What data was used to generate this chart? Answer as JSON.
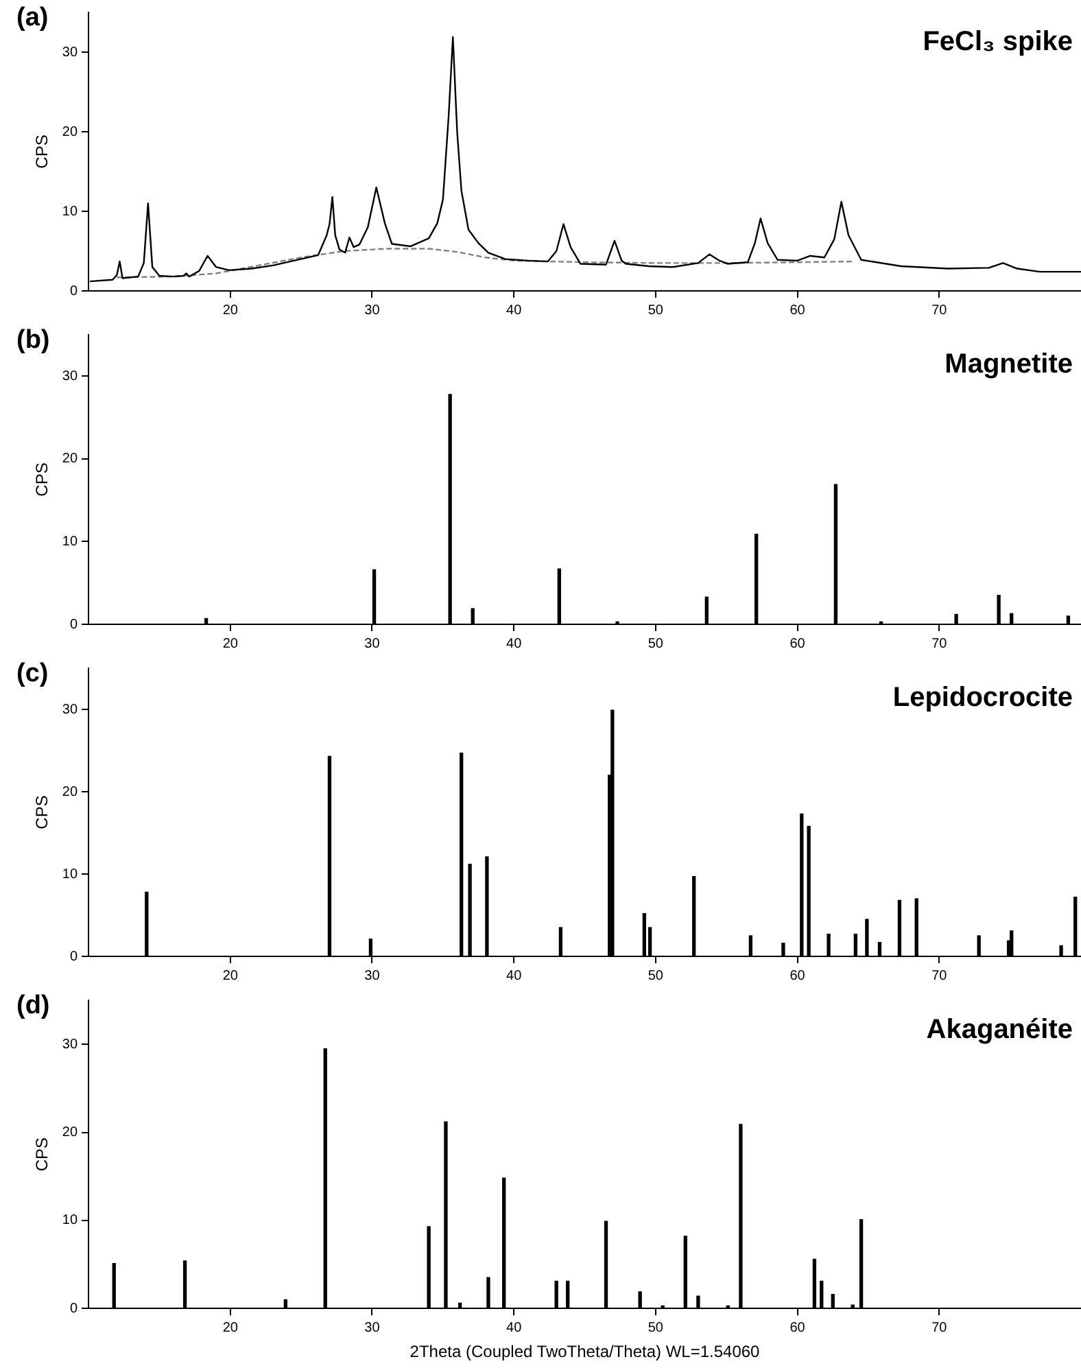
{
  "chart_data": [
    {
      "type": "line",
      "title": "FeCl₃ spike",
      "annotations": [
        "(a)"
      ],
      "ylabel": "CPS",
      "xlim": [
        10,
        80
      ],
      "ylim": [
        0,
        35
      ],
      "xticks": [
        20,
        30,
        40,
        50,
        60,
        70
      ],
      "yticks": [
        0,
        10,
        20,
        30
      ],
      "series": [
        {
          "color": "#000000",
          "x": [
            10.1,
            11.7,
            12.0,
            12.2,
            12.4,
            13.5,
            13.9,
            14.2,
            14.5,
            15.0,
            16.0,
            16.7,
            16.9,
            17.1,
            17.8,
            18.4,
            19.0,
            19.9,
            21.5,
            23.0,
            24.5,
            26.2,
            26.8,
            27.0,
            27.2,
            27.4,
            27.7,
            28.1,
            28.4,
            28.7,
            29.1,
            29.7,
            30.3,
            30.9,
            31.4,
            32.7,
            34.0,
            34.6,
            35.0,
            35.4,
            35.7,
            36.0,
            36.3,
            36.8,
            37.5,
            38.2,
            39.4,
            41.0,
            42.4,
            43.0,
            43.5,
            44.0,
            44.7,
            46.5,
            47.1,
            47.6,
            47.9,
            49.5,
            51.2,
            53.0,
            53.8,
            54.5,
            55.1,
            56.5,
            57.0,
            57.4,
            57.9,
            58.6,
            60.0,
            60.9,
            61.9,
            62.6,
            63.1,
            63.6,
            64.5,
            67.3,
            70.6,
            73.5,
            74.5,
            75.5,
            77.1,
            80.0
          ],
          "values": [
            1.2,
            1.4,
            2.0,
            3.7,
            1.6,
            1.8,
            3.5,
            11.0,
            3.0,
            1.9,
            1.8,
            1.9,
            2.2,
            1.8,
            2.5,
            4.4,
            3.0,
            2.6,
            2.8,
            3.2,
            3.8,
            4.5,
            7.0,
            8.4,
            11.8,
            7.0,
            5.2,
            4.8,
            6.7,
            5.5,
            5.8,
            8.0,
            13.0,
            8.5,
            5.9,
            5.6,
            6.6,
            8.5,
            11.5,
            22.0,
            31.9,
            20.0,
            12.6,
            7.7,
            6.0,
            4.8,
            4.0,
            3.8,
            3.7,
            5.0,
            8.4,
            5.5,
            3.4,
            3.3,
            6.3,
            3.8,
            3.4,
            3.1,
            3.0,
            3.5,
            4.6,
            3.8,
            3.4,
            3.6,
            6.0,
            9.1,
            6.0,
            3.9,
            3.8,
            4.4,
            4.2,
            6.5,
            11.2,
            7.0,
            3.9,
            3.1,
            2.8,
            2.9,
            3.5,
            2.8,
            2.4,
            2.4
          ]
        },
        {
          "color": "#808080",
          "line_style": "dashed",
          "x": [
            12,
            16,
            19,
            22,
            25,
            28,
            31,
            34,
            36,
            38,
            40,
            45,
            50,
            55,
            60,
            64
          ],
          "values": [
            1.7,
            1.8,
            2.2,
            3.2,
            4.2,
            5.0,
            5.3,
            5.3,
            4.9,
            4.2,
            3.8,
            3.6,
            3.5,
            3.5,
            3.6,
            3.7
          ]
        }
      ]
    },
    {
      "type": "bar",
      "title": "Magnetite",
      "annotations": [
        "(b)"
      ],
      "ylabel": "CPS",
      "xlim": [
        10,
        80
      ],
      "ylim": [
        0,
        35
      ],
      "xticks": [
        20,
        30,
        40,
        50,
        60,
        70
      ],
      "yticks": [
        0,
        10,
        20,
        30
      ],
      "color": "#000000",
      "x": [
        18.3,
        30.15,
        35.5,
        37.1,
        43.2,
        47.3,
        53.6,
        57.1,
        62.7,
        65.9,
        71.2,
        74.2,
        75.1,
        79.1
      ],
      "values": [
        0.7,
        6.6,
        27.8,
        1.9,
        6.7,
        0.3,
        3.3,
        10.9,
        16.9,
        0.3,
        1.2,
        3.5,
        1.3,
        1.0
      ]
    },
    {
      "type": "bar",
      "title": "Lepidocrocite",
      "annotations": [
        "(c)"
      ],
      "ylabel": "CPS",
      "xlim": [
        10,
        80
      ],
      "ylim": [
        0,
        35
      ],
      "xticks": [
        20,
        30,
        40,
        50,
        60,
        70
      ],
      "yticks": [
        0,
        10,
        20,
        30
      ],
      "color": "#000000",
      "x": [
        14.1,
        27.0,
        29.9,
        36.3,
        36.9,
        38.1,
        43.3,
        46.75,
        46.95,
        49.2,
        49.6,
        52.7,
        56.7,
        59.0,
        60.3,
        60.8,
        62.2,
        64.1,
        64.9,
        65.8,
        67.2,
        68.4,
        72.8,
        74.9,
        75.1,
        78.6,
        79.6
      ],
      "values": [
        7.8,
        24.3,
        2.1,
        24.7,
        11.2,
        12.1,
        3.5,
        22.0,
        29.9,
        5.2,
        3.5,
        9.7,
        2.5,
        1.6,
        17.3,
        15.8,
        2.7,
        2.7,
        4.5,
        1.7,
        6.8,
        7.0,
        2.5,
        1.9,
        3.1,
        1.3,
        7.2
      ]
    },
    {
      "type": "bar",
      "title": "Akaganéite",
      "annotations": [
        "(d)"
      ],
      "ylabel": "CPS",
      "xlabel": "2Theta (Coupled TwoTheta/Theta) WL=1.54060",
      "xlim": [
        10,
        80
      ],
      "ylim": [
        0,
        35
      ],
      "xticks": [
        20,
        30,
        40,
        50,
        60,
        70
      ],
      "yticks": [
        0,
        10,
        20,
        30
      ],
      "color": "#000000",
      "x": [
        11.8,
        16.8,
        23.9,
        26.7,
        34.0,
        35.2,
        36.2,
        38.2,
        39.3,
        43.0,
        43.8,
        46.5,
        48.9,
        50.5,
        52.1,
        53.0,
        55.1,
        56.0,
        61.2,
        61.7,
        62.5,
        63.9,
        64.5
      ],
      "values": [
        5.1,
        5.4,
        1.0,
        29.5,
        9.3,
        21.2,
        0.6,
        3.5,
        14.8,
        3.1,
        3.1,
        9.9,
        1.9,
        0.3,
        8.2,
        1.4,
        0.3,
        20.9,
        5.6,
        3.1,
        1.6,
        0.4,
        10.1
      ]
    }
  ]
}
